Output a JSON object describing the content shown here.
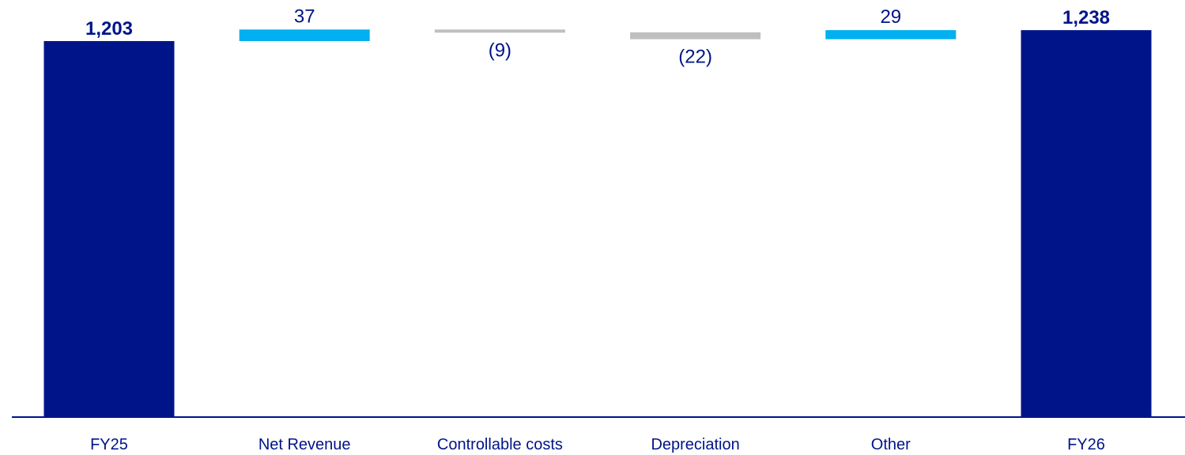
{
  "chart_data": {
    "type": "bar",
    "subtype": "waterfall",
    "title": "",
    "xlabel": "",
    "ylabel": "",
    "categories": [
      "FY25",
      "Net Revenue",
      "Controllable costs",
      "Depreciation",
      "Other",
      "FY26"
    ],
    "values": [
      1203,
      37,
      -9,
      -22,
      29,
      1238
    ],
    "kinds": [
      "total",
      "delta",
      "delta",
      "delta",
      "delta",
      "total"
    ],
    "data_labels": [
      "1,203",
      "37",
      "(9)",
      "(22)",
      "29",
      "1,238"
    ],
    "grid": false,
    "legend": "none",
    "colors": {
      "total": "#001489",
      "increase": "#00b0f0",
      "decrease": "#bfbfbf",
      "axis": "#001489",
      "text": "#001489"
    }
  }
}
